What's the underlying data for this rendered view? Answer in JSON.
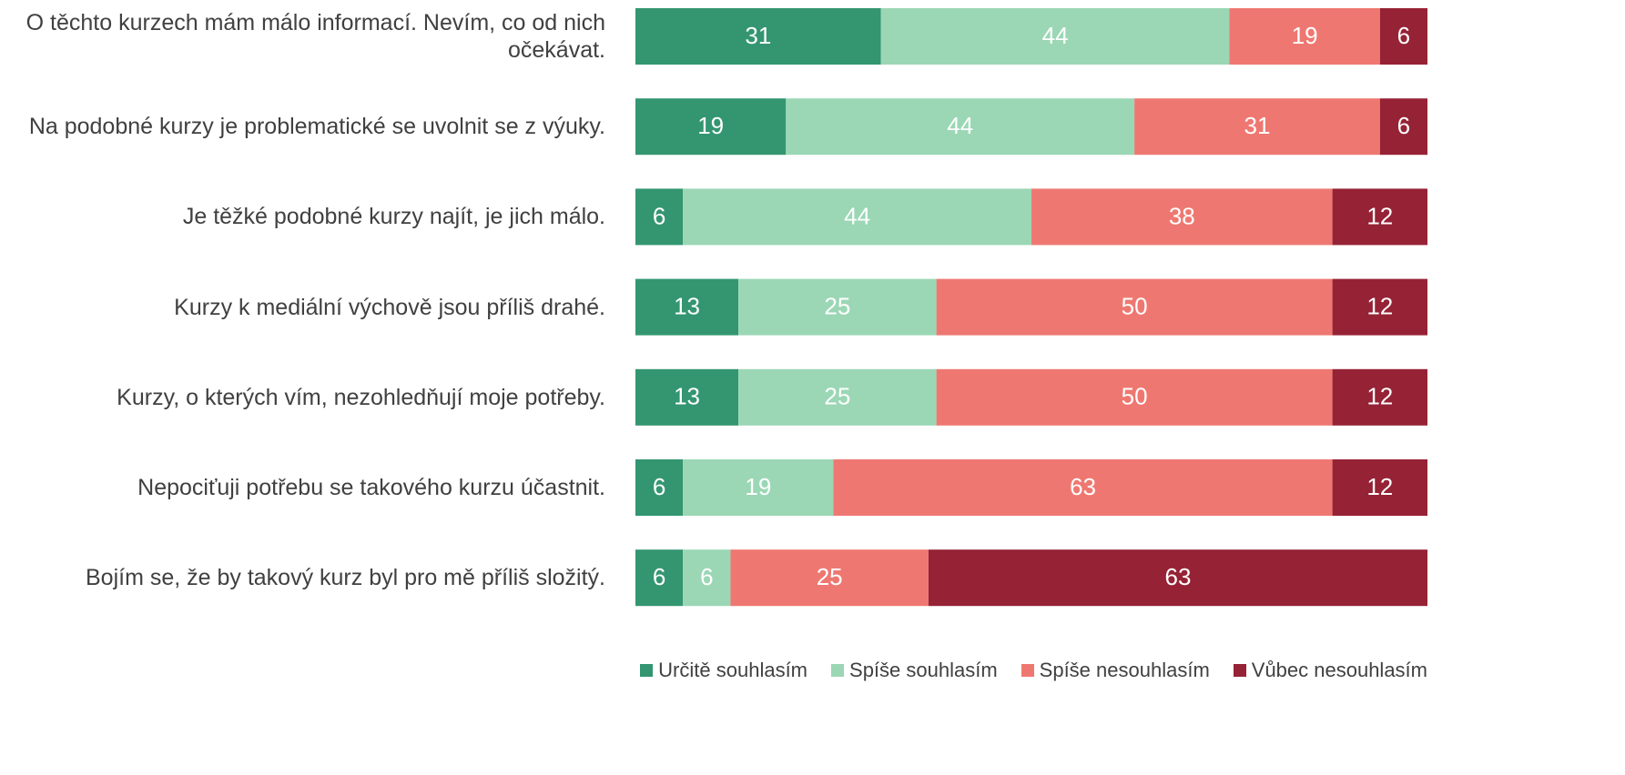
{
  "chart_data": {
    "type": "stacked-barh",
    "categories": [
      "O těchto kurzech mám málo informací. Nevím, co od nich očekávat.",
      "Na podobné kurzy je problematické se uvolnit se z výuky.",
      "Je těžké podobné kurzy najít, je jich málo.",
      "Kurzy k mediální výchově jsou příliš drahé.",
      "Kurzy, o kterých vím, nezohledňují moje potřeby.",
      "Nepociťuji potřebu se takového kurzu účastnit.",
      "Bojím se, že by takový kurz byl pro mě příliš složitý."
    ],
    "series": [
      {
        "name": "Určitě souhlasím",
        "color": "#339670",
        "values": [
          31,
          19,
          6,
          13,
          13,
          6,
          6
        ]
      },
      {
        "name": "Spíše souhlasím",
        "color": "#9bd7b5",
        "values": [
          44,
          44,
          44,
          25,
          25,
          19,
          6
        ]
      },
      {
        "name": "Spíše nesouhlasím",
        "color": "#ee7871",
        "values": [
          19,
          31,
          38,
          50,
          50,
          63,
          25
        ]
      },
      {
        "name": "Vůbec nesouhlasím",
        "color": "#962235",
        "values": [
          6,
          6,
          12,
          12,
          12,
          12,
          63
        ]
      }
    ],
    "legend": "bottom-right"
  }
}
